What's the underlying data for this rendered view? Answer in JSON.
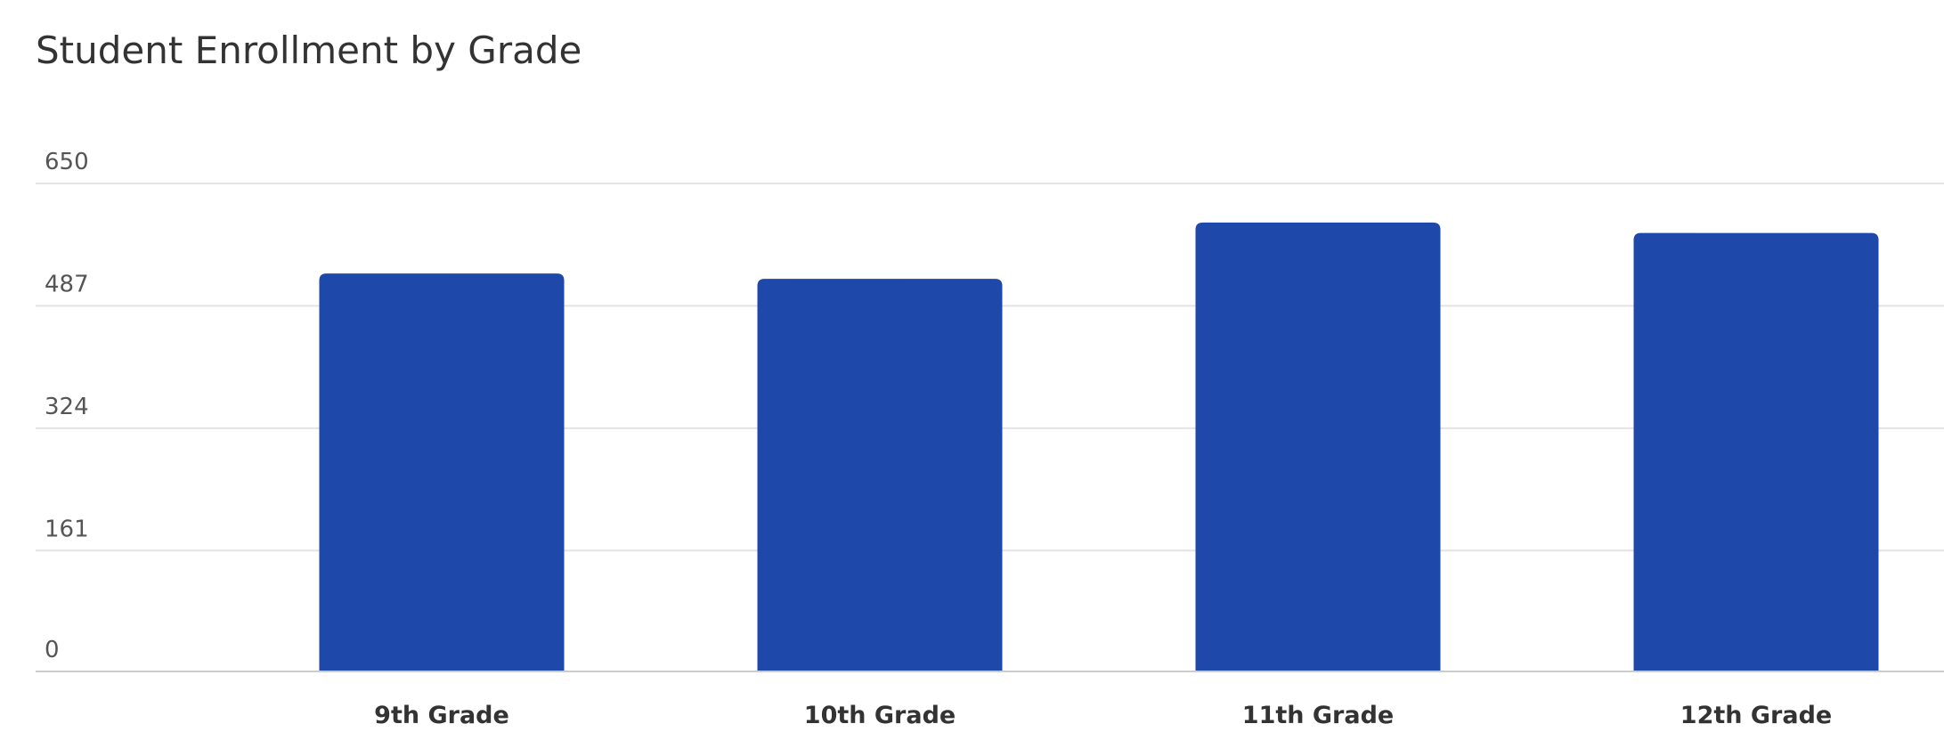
{
  "chart_data": {
    "type": "bar",
    "title": "Student Enrollment by Grade",
    "xlabel": "",
    "ylabel": "",
    "categories": [
      "9th Grade",
      "10th Grade",
      "11th Grade",
      "12th Grade"
    ],
    "series": [
      {
        "values": [
          530,
          523,
          598,
          584
        ],
        "color": "#1f48ab"
      }
    ],
    "ylim": [
      0,
      650
    ],
    "yticks": [
      0,
      161,
      324,
      487,
      650
    ],
    "ytick_labels": [
      "0",
      "161",
      "324",
      "487",
      "650"
    ],
    "grid": true,
    "legend": "none",
    "gridline_color": "#e3e3e3",
    "axis_color": "#cccccc"
  }
}
